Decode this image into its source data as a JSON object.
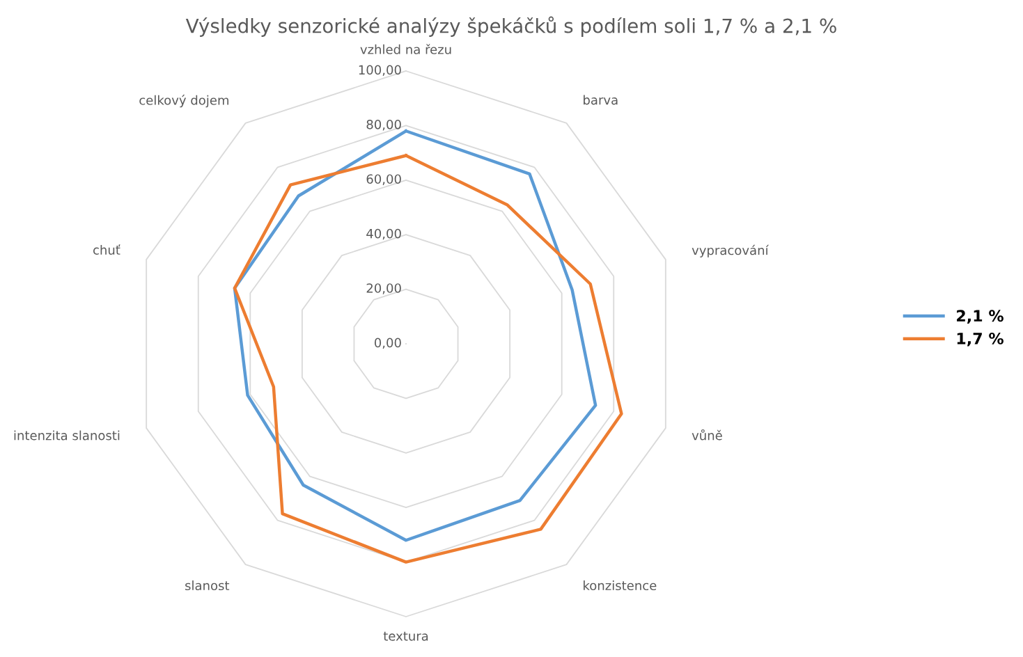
{
  "chart_data": {
    "type": "radar",
    "title": "Výsledky senzorické analýzy špekáčků s podílem soli 1,7 % a 2,1 %",
    "categories": [
      "vzhled na řezu",
      "barva",
      "vypracování",
      "vůně",
      "konzistence",
      "textura",
      "slanost",
      "intenzita slanosti",
      "chuť",
      "celkový dojem"
    ],
    "series": [
      {
        "name": "2,1 %",
        "color": "#5b9bd5",
        "values": [
          78,
          77,
          64,
          73,
          71,
          72,
          64,
          61,
          66,
          67
        ]
      },
      {
        "name": "1,7 %",
        "color": "#ed7d31",
        "values": [
          69,
          63,
          71,
          83,
          84,
          80,
          77,
          51,
          66,
          72
        ]
      }
    ],
    "ylim": [
      0,
      100
    ],
    "yticks": [
      {
        "value": 0,
        "label": "0,00"
      },
      {
        "value": 20,
        "label": "20,00"
      },
      {
        "value": 40,
        "label": "40,00"
      },
      {
        "value": 60,
        "label": "60,00"
      },
      {
        "value": 80,
        "label": "80,00"
      },
      {
        "value": 100,
        "label": "100,00"
      }
    ],
    "grid": true,
    "legend": "right",
    "marker": "none",
    "line_style": "solid"
  }
}
